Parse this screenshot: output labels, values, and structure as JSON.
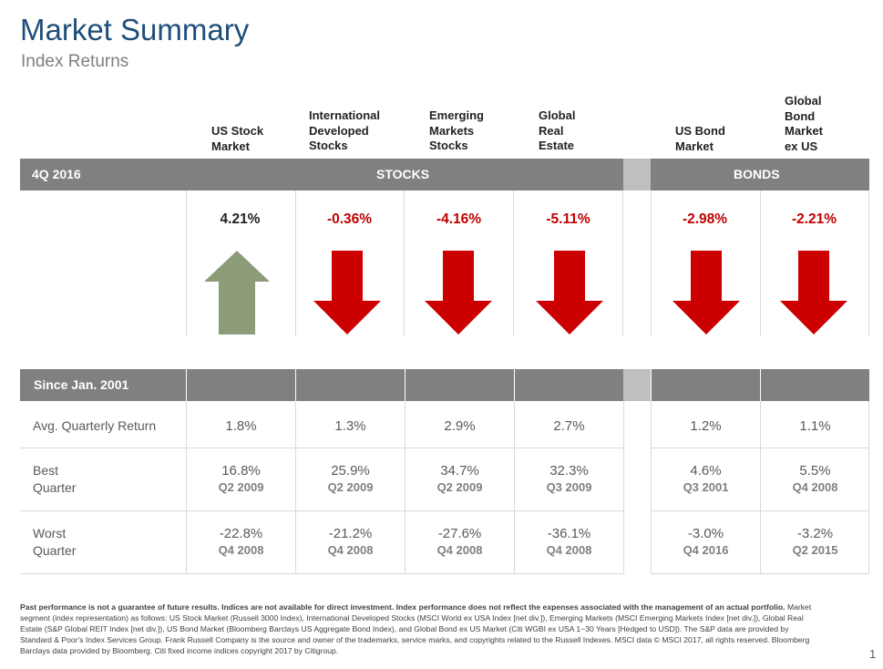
{
  "title": "Market Summary",
  "subtitle": "Index Returns",
  "columns": [
    {
      "name": "US Stock\nMarket"
    },
    {
      "name": "International\nDeveloped\nStocks"
    },
    {
      "name": "Emerging\nMarkets\nStocks"
    },
    {
      "name": "Global\nReal\nEstate"
    },
    {
      "name": "US Bond\nMarket"
    },
    {
      "name": "Global\nBond\nMarket\nex US"
    }
  ],
  "period_label": "4Q 2016",
  "stocks_label": "STOCKS",
  "bonds_label": "BONDS",
  "returns": [
    {
      "value": "4.21%",
      "direction": "up"
    },
    {
      "value": "-0.36%",
      "direction": "down"
    },
    {
      "value": "-4.16%",
      "direction": "down"
    },
    {
      "value": "-5.11%",
      "direction": "down"
    },
    {
      "value": "-2.98%",
      "direction": "down"
    },
    {
      "value": "-2.21%",
      "direction": "down"
    }
  ],
  "since_label": "Since Jan. 2001",
  "avg_label": "Avg. Quarterly Return",
  "best_label": "Best\nQuarter",
  "worst_label": "Worst\nQuarter",
  "avg": [
    "1.8%",
    "1.3%",
    "2.9%",
    "2.7%",
    "1.2%",
    "1.1%"
  ],
  "best": [
    {
      "value": "16.8%",
      "quarter": "Q2 2009"
    },
    {
      "value": "25.9%",
      "quarter": "Q2 2009"
    },
    {
      "value": "34.7%",
      "quarter": "Q2 2009"
    },
    {
      "value": "32.3%",
      "quarter": "Q3 2009"
    },
    {
      "value": "4.6%",
      "quarter": "Q3 2001"
    },
    {
      "value": "5.5%",
      "quarter": "Q4 2008"
    }
  ],
  "worst": [
    {
      "value": "-22.8%",
      "quarter": "Q4 2008"
    },
    {
      "value": "-21.2%",
      "quarter": "Q4 2008"
    },
    {
      "value": "-27.6%",
      "quarter": "Q4 2008"
    },
    {
      "value": "-36.1%",
      "quarter": "Q4 2008"
    },
    {
      "value": "-3.0%",
      "quarter": "Q4 2016"
    },
    {
      "value": "-3.2%",
      "quarter": "Q2 2015"
    }
  ],
  "footnote_bold": "Past performance is not a guarantee of future results. Indices are not available for direct investment. Index performance does not reflect the expenses associated with the management of an actual portfolio.",
  "footnote_text": "Market segment (index representation) as follows: US Stock Market (Russell 3000 Index), International Developed Stocks (MSCI World ex USA Index [net div.]), Emerging Markets (MSCI Emerging Markets Index [net div.]), Global Real Estate (S&P Global REIT Index [net div.]), US Bond Market (Bloomberg Barclays US Aggregate Bond Index), and Global Bond ex US Market (Citi WGBI ex USA 1−30 Years [Hedged to USD]). The S&P data are provided by Standard & Poor's Index Services Group. Frank Russell Company is the source and owner of the trademarks, service marks, and copyrights related to the Russell Indexes. MSCI data © MSCI 2017, all rights reserved. Bloomberg Barclays data provided by Bloomberg. Citi fixed income indices copyright 2017 by Citigroup.",
  "page_number": "1",
  "colors": {
    "title": "#1f4e79",
    "positive_arrow": "#8c9c78",
    "negative_arrow": "#cc0000",
    "negative_text": "#c00000",
    "header_bar": "#808080",
    "gap_bar": "#bfbfbf"
  }
}
